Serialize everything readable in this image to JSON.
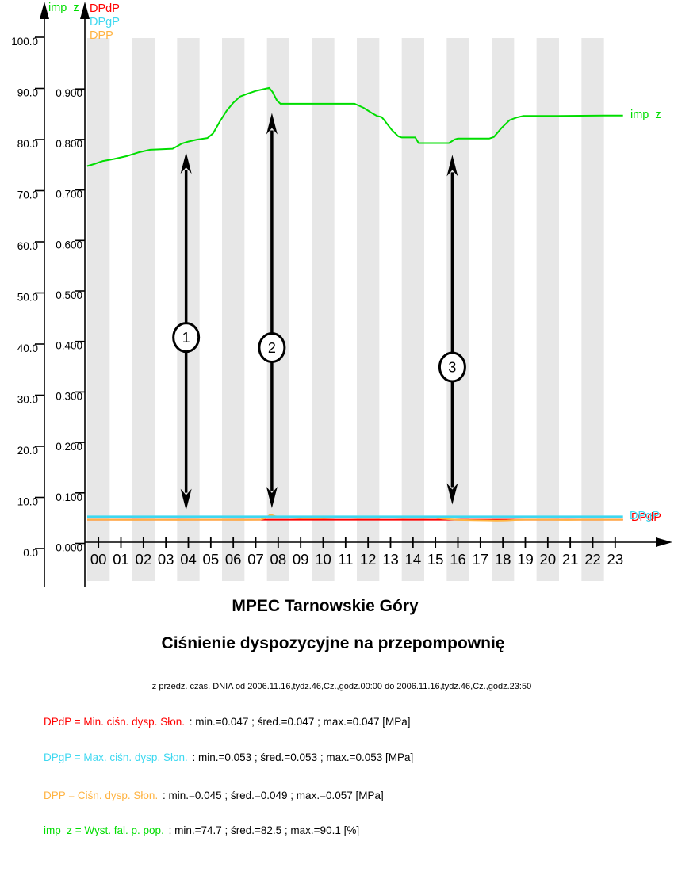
{
  "colors": {
    "DPdP": "#ff0000",
    "DPgP": "#3ed8f0",
    "DPP": "#ffb341",
    "imp_z": "#00dd00",
    "band": "#e7e7e7",
    "axis": "#000000"
  },
  "top_legend": {
    "left_axis_label": "imp_z",
    "items": [
      {
        "label": "DPdP",
        "color_key": "DPdP"
      },
      {
        "label": "DPgP",
        "color_key": "DPgP"
      },
      {
        "label": "DPP",
        "color_key": "DPP"
      }
    ]
  },
  "line_end_labels": {
    "imp_z": "imp_z",
    "DPgP": "DPgP",
    "DPdP": "DPdP"
  },
  "titles": {
    "line1": "MPEC Tarnowskie Góry",
    "line2": "Ciśnienie dyspozycyjne na przepompownię",
    "subtitle": "z przedz. czas. DNIA od 2006.11.16,tydz.46,Cz.,godz.00:00 do 2006.11.16,tydz.46,Cz.,godz.23:50"
  },
  "stats": [
    {
      "label": "DPdP = Min. ciśn. dysp. Słon.",
      "rest": " : min.=0.047 ; śred.=0.047 ; max.=0.047 [MPa]",
      "color_key": "DPdP"
    },
    {
      "label": "DPgP = Max. ciśn. dysp. Słon.",
      "rest": " : min.=0.053 ; śred.=0.053 ; max.=0.053 [MPa]",
      "color_key": "DPgP"
    },
    {
      "label": "DPP = Ciśn. dysp. Słon.",
      "rest": " : min.=0.045 ; śred.=0.049 ; max.=0.057 [MPa]",
      "color_key": "DPP"
    },
    {
      "label": "imp_z = Wyst. fal. p. pop.",
      "rest": " : min.=74.7 ; śred.=82.5 ; max.=90.1 [%]",
      "color_key": "imp_z"
    }
  ],
  "chart_data": {
    "type": "line",
    "x_unit": "hour",
    "x_range": [
      0,
      24
    ],
    "x_ticks": [
      "00",
      "01",
      "02",
      "03",
      "04",
      "05",
      "06",
      "07",
      "08",
      "09",
      "10",
      "11",
      "12",
      "13",
      "14",
      "15",
      "16",
      "17",
      "18",
      "19",
      "20",
      "21",
      "22",
      "23"
    ],
    "y_axis_percent": {
      "name": "imp_z",
      "range": [
        0,
        100
      ],
      "tick_labels": [
        "0.0",
        "10.0",
        "20.0",
        "30.0",
        "40.0",
        "50.0",
        "60.0",
        "70.0",
        "80.0",
        "90.0",
        "100.0"
      ]
    },
    "y_axis_pressure": {
      "name": "MPa",
      "range": [
        0.0,
        1.0
      ],
      "tick_labels": [
        "0.000",
        "0.100",
        "0.200",
        "0.300",
        "0.400",
        "0.500",
        "0.600",
        "0.700",
        "0.800",
        "0.900"
      ]
    },
    "grid": "alternating-hour-bands",
    "series": [
      {
        "name": "DPdP",
        "axis": "pressure",
        "color_key": "DPdP",
        "width": 2,
        "points": [
          [
            0,
            0.047
          ],
          [
            23.85,
            0.047
          ]
        ]
      },
      {
        "name": "DPP",
        "axis": "pressure",
        "color_key": "DPP",
        "width": 2,
        "points": [
          [
            0,
            0.047
          ],
          [
            1,
            0.047
          ],
          [
            2,
            0.0468
          ],
          [
            3,
            0.047
          ],
          [
            4,
            0.0468
          ],
          [
            5,
            0.047
          ],
          [
            6,
            0.047
          ],
          [
            7,
            0.0468
          ],
          [
            7.7,
            0.047
          ],
          [
            7.95,
            0.05
          ],
          [
            8.15,
            0.057
          ],
          [
            8.35,
            0.054
          ],
          [
            8.6,
            0.052
          ],
          [
            9,
            0.051
          ],
          [
            9.6,
            0.05
          ],
          [
            10.4,
            0.05
          ],
          [
            11,
            0.051
          ],
          [
            11.5,
            0.0515
          ],
          [
            12,
            0.0505
          ],
          [
            12.5,
            0.051
          ],
          [
            13,
            0.0505
          ],
          [
            13.3,
            0.053
          ],
          [
            13.6,
            0.051
          ],
          [
            14,
            0.0505
          ],
          [
            14.5,
            0.051
          ],
          [
            15,
            0.0505
          ],
          [
            15.5,
            0.051
          ],
          [
            15.8,
            0.049
          ],
          [
            16.2,
            0.0475
          ],
          [
            16.6,
            0.0465
          ],
          [
            17.2,
            0.046
          ],
          [
            17.8,
            0.0455
          ],
          [
            18.2,
            0.045
          ],
          [
            18.7,
            0.0455
          ],
          [
            19.1,
            0.0465
          ],
          [
            19.5,
            0.047
          ],
          [
            20.5,
            0.047
          ],
          [
            21.4,
            0.0465
          ],
          [
            22,
            0.047
          ],
          [
            23.85,
            0.047
          ]
        ]
      },
      {
        "name": "DPgP",
        "axis": "pressure",
        "color_key": "DPgP",
        "width": 2.6,
        "points": [
          [
            0,
            0.053
          ],
          [
            23.85,
            0.053
          ]
        ]
      },
      {
        "name": "imp_z",
        "axis": "percent",
        "color_key": "imp_z",
        "width": 2,
        "points": [
          [
            0,
            74.8
          ],
          [
            0.3,
            75.2
          ],
          [
            0.7,
            75.8
          ],
          [
            1.2,
            76.2
          ],
          [
            1.8,
            76.8
          ],
          [
            2.3,
            77.5
          ],
          [
            2.8,
            78.0
          ],
          [
            3.3,
            78.1
          ],
          [
            3.8,
            78.2
          ],
          [
            4.05,
            78.8
          ],
          [
            4.2,
            79.2
          ],
          [
            4.5,
            79.6
          ],
          [
            4.9,
            80.0
          ],
          [
            5.35,
            80.3
          ],
          [
            5.6,
            81.2
          ],
          [
            5.9,
            83.5
          ],
          [
            6.2,
            85.6
          ],
          [
            6.5,
            87.2
          ],
          [
            6.8,
            88.4
          ],
          [
            7.1,
            88.9
          ],
          [
            7.5,
            89.5
          ],
          [
            7.9,
            89.9
          ],
          [
            8.1,
            90.1
          ],
          [
            8.25,
            89.3
          ],
          [
            8.45,
            87.6
          ],
          [
            8.6,
            87.0
          ],
          [
            9.5,
            87.0
          ],
          [
            11.9,
            87.0
          ],
          [
            12.3,
            86.2
          ],
          [
            12.7,
            85.1
          ],
          [
            12.9,
            84.6
          ],
          [
            13.1,
            84.4
          ],
          [
            13.2,
            83.9
          ],
          [
            13.55,
            81.9
          ],
          [
            13.85,
            80.6
          ],
          [
            14.0,
            80.4
          ],
          [
            14.6,
            80.4
          ],
          [
            14.75,
            79.3
          ],
          [
            16.1,
            79.3
          ],
          [
            16.35,
            80.0
          ],
          [
            16.5,
            80.2
          ],
          [
            17.9,
            80.2
          ],
          [
            18.1,
            80.5
          ],
          [
            18.45,
            82.3
          ],
          [
            18.8,
            83.8
          ],
          [
            19.1,
            84.3
          ],
          [
            19.4,
            84.6
          ],
          [
            21,
            84.6
          ],
          [
            23,
            84.7
          ],
          [
            23.85,
            84.7
          ]
        ]
      }
    ],
    "annotations": [
      {
        "label": "1",
        "hour": 4.4,
        "top_value": 77.5,
        "bottom_value": 7.5,
        "circle_value": 41.3
      },
      {
        "label": "2",
        "hour": 8.22,
        "top_value": 85.2,
        "bottom_value": 7.9,
        "circle_value": 39.3
      },
      {
        "label": "3",
        "hour": 16.25,
        "top_value": 77.0,
        "bottom_value": 8.6,
        "circle_value": 35.5
      }
    ]
  }
}
